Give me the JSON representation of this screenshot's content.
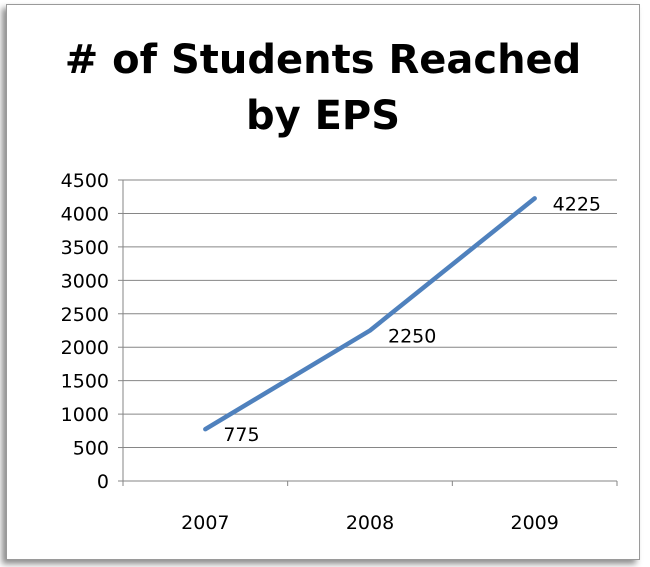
{
  "chart_data": {
    "type": "line",
    "title_lines": [
      "# of Students Reached",
      "by EPS"
    ],
    "xlabel": "",
    "ylabel": "",
    "categories": [
      "2007",
      "2008",
      "2009"
    ],
    "series": [
      {
        "values": [
          775,
          2250,
          4225
        ],
        "color": "#4f81bd"
      }
    ],
    "data_labels": [
      "775",
      "2250",
      "4225"
    ],
    "ylim": [
      0,
      4500
    ],
    "yticks": [
      0,
      500,
      1000,
      1500,
      2000,
      2500,
      3000,
      3500,
      4000,
      4500
    ],
    "grid": true,
    "legend": "none"
  }
}
